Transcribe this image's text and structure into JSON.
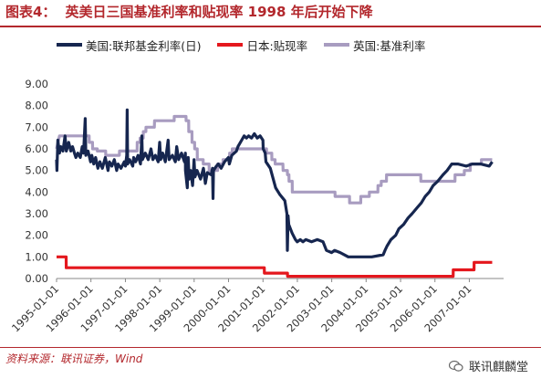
{
  "header": {
    "figure_label": "图表4：",
    "title": "英美日三国基准利率和贴现率 1998 年后开始下降"
  },
  "footer": {
    "source": "资料来源：联讯证券，Wind",
    "watermark": "联讯麒麟堂"
  },
  "chart_data": {
    "type": "line",
    "ylim": [
      0,
      9
    ],
    "yticks": [
      "0.00",
      "1.00",
      "2.00",
      "3.00",
      "4.00",
      "5.00",
      "6.00",
      "7.00",
      "8.00",
      "9.00"
    ],
    "xlim": [
      "1995-01-01",
      "2007-12-31"
    ],
    "xticks": [
      "1995-01-01",
      "1996-01-01",
      "1997-01-01",
      "1998-01-01",
      "1999-01-01",
      "2000-01-01",
      "2001-01-01",
      "2002-01-01",
      "2003-01-01",
      "2004-01-01",
      "2005-01-01",
      "2006-01-01",
      "2007-01-01"
    ],
    "grid": false,
    "legend_position": "top",
    "series": [
      {
        "name": "美国:联邦基金利率(日)",
        "color": "#16264f",
        "points": [
          [
            "1995-01-01",
            5.5
          ],
          [
            "1995-01-05",
            5.0
          ],
          [
            "1995-01-15",
            6.4
          ],
          [
            "1995-02-01",
            5.8
          ],
          [
            "1995-02-15",
            6.1
          ],
          [
            "1995-03-10",
            5.9
          ],
          [
            "1995-04-01",
            6.6
          ],
          [
            "1995-04-15",
            5.9
          ],
          [
            "1995-05-10",
            6.3
          ],
          [
            "1995-06-01",
            5.9
          ],
          [
            "1995-06-20",
            6.1
          ],
          [
            "1995-07-10",
            5.8
          ],
          [
            "1995-07-25",
            5.6
          ],
          [
            "1995-08-15",
            5.8
          ],
          [
            "1995-09-10",
            5.6
          ],
          [
            "1995-09-30",
            6.1
          ],
          [
            "1995-10-15",
            5.8
          ],
          [
            "1995-11-01",
            7.4
          ],
          [
            "1995-11-08",
            5.7
          ],
          [
            "1995-12-01",
            5.9
          ],
          [
            "1995-12-28",
            5.4
          ],
          [
            "1996-01-10",
            5.7
          ],
          [
            "1996-01-31",
            5.3
          ],
          [
            "1996-02-20",
            5.6
          ],
          [
            "1996-03-15",
            5.1
          ],
          [
            "1996-04-05",
            5.4
          ],
          [
            "1996-05-01",
            5.1
          ],
          [
            "1996-06-01",
            5.6
          ],
          [
            "1996-06-30",
            5.0
          ],
          [
            "1996-07-15",
            5.4
          ],
          [
            "1996-08-10",
            5.2
          ],
          [
            "1996-09-05",
            5.5
          ],
          [
            "1996-09-30",
            5.0
          ],
          [
            "1996-10-15",
            5.3
          ],
          [
            "1996-11-15",
            5.1
          ],
          [
            "1996-12-20",
            5.4
          ],
          [
            "1997-01-01",
            5.2
          ],
          [
            "1997-01-15",
            5.7
          ],
          [
            "1997-01-20",
            7.8
          ],
          [
            "1997-01-25",
            5.3
          ],
          [
            "1997-02-15",
            5.5
          ],
          [
            "1997-03-20",
            5.2
          ],
          [
            "1997-03-30",
            5.6
          ],
          [
            "1997-04-20",
            5.4
          ],
          [
            "1997-05-15",
            5.7
          ],
          [
            "1997-06-10",
            5.3
          ],
          [
            "1997-06-25",
            6.6
          ],
          [
            "1997-07-01",
            5.5
          ],
          [
            "1997-08-01",
            5.8
          ],
          [
            "1997-09-01",
            5.5
          ],
          [
            "1997-09-30",
            6.0
          ],
          [
            "1997-10-20",
            5.5
          ],
          [
            "1997-11-15",
            5.7
          ],
          [
            "1997-12-15",
            5.4
          ],
          [
            "1997-12-31",
            6.3
          ],
          [
            "1998-01-10",
            5.5
          ],
          [
            "1998-02-01",
            5.8
          ],
          [
            "1998-03-01",
            5.4
          ],
          [
            "1998-03-31",
            6.4
          ],
          [
            "1998-04-10",
            5.5
          ],
          [
            "1998-05-15",
            5.7
          ],
          [
            "1998-06-15",
            5.4
          ],
          [
            "1998-06-30",
            6.1
          ],
          [
            "1998-07-20",
            5.5
          ],
          [
            "1998-08-20",
            5.8
          ],
          [
            "1998-09-20",
            5.4
          ],
          [
            "1998-09-30",
            5.8
          ],
          [
            "1998-10-01",
            5.0
          ],
          [
            "1998-10-20",
            4.2
          ],
          [
            "1998-10-30",
            5.6
          ],
          [
            "1998-11-10",
            4.6
          ],
          [
            "1998-11-25",
            5.0
          ],
          [
            "1998-12-15",
            4.3
          ],
          [
            "1998-12-31",
            5.5
          ],
          [
            "1999-01-10",
            4.7
          ],
          [
            "1999-02-01",
            5.0
          ],
          [
            "1999-03-10",
            4.6
          ],
          [
            "1999-04-10",
            5.1
          ],
          [
            "1999-04-30",
            4.4
          ],
          [
            "1999-05-20",
            4.9
          ],
          [
            "1999-06-30",
            4.8
          ],
          [
            "1999-07-15",
            5.1
          ],
          [
            "1999-07-20",
            3.7
          ],
          [
            "1999-07-25",
            5.0
          ],
          [
            "1999-08-25",
            5.2
          ],
          [
            "1999-09-15",
            5.3
          ],
          [
            "1999-10-15",
            5.1
          ],
          [
            "1999-11-20",
            5.4
          ],
          [
            "1999-12-31",
            5.6
          ],
          [
            "2000-01-10",
            5.3
          ],
          [
            "2000-02-05",
            5.7
          ],
          [
            "2000-03-25",
            5.9
          ],
          [
            "2000-04-10",
            6.1
          ],
          [
            "2000-05-20",
            6.4
          ],
          [
            "2000-06-15",
            6.6
          ],
          [
            "2000-07-10",
            6.5
          ],
          [
            "2000-08-01",
            6.6
          ],
          [
            "2000-09-01",
            6.5
          ],
          [
            "2000-10-01",
            6.7
          ],
          [
            "2000-11-01",
            6.5
          ],
          [
            "2000-12-01",
            6.6
          ],
          [
            "2000-12-31",
            6.4
          ],
          [
            "2001-01-03",
            6.0
          ],
          [
            "2001-01-25",
            5.8
          ],
          [
            "2001-02-01",
            5.4
          ],
          [
            "2001-03-20",
            5.1
          ],
          [
            "2001-04-20",
            4.6
          ],
          [
            "2001-05-15",
            4.2
          ],
          [
            "2001-06-27",
            3.9
          ],
          [
            "2001-08-21",
            3.6
          ],
          [
            "2001-09-12",
            3.0
          ],
          [
            "2001-09-17",
            1.3
          ],
          [
            "2001-09-25",
            2.9
          ],
          [
            "2001-10-02",
            2.5
          ],
          [
            "2001-11-06",
            2.1
          ],
          [
            "2001-12-11",
            1.8
          ],
          [
            "2001-12-31",
            1.7
          ],
          [
            "2002-02-01",
            1.8
          ],
          [
            "2002-03-01",
            1.7
          ],
          [
            "2002-04-01",
            1.8
          ],
          [
            "2002-06-01",
            1.7
          ],
          [
            "2002-08-01",
            1.8
          ],
          [
            "2002-10-01",
            1.7
          ],
          [
            "2002-11-06",
            1.3
          ],
          [
            "2002-12-31",
            1.2
          ],
          [
            "2003-02-01",
            1.3
          ],
          [
            "2003-04-01",
            1.2
          ],
          [
            "2003-06-25",
            1.0
          ],
          [
            "2003-09-01",
            1.0
          ],
          [
            "2003-12-31",
            1.0
          ],
          [
            "2004-03-01",
            1.0
          ],
          [
            "2004-06-30",
            1.1
          ],
          [
            "2004-07-20",
            1.3
          ],
          [
            "2004-08-10",
            1.5
          ],
          [
            "2004-09-21",
            1.8
          ],
          [
            "2004-11-10",
            2.0
          ],
          [
            "2004-12-14",
            2.3
          ],
          [
            "2005-02-02",
            2.5
          ],
          [
            "2005-03-22",
            2.8
          ],
          [
            "2005-05-03",
            3.0
          ],
          [
            "2005-06-30",
            3.3
          ],
          [
            "2005-08-09",
            3.5
          ],
          [
            "2005-09-20",
            3.8
          ],
          [
            "2005-11-01",
            4.0
          ],
          [
            "2005-12-13",
            4.3
          ],
          [
            "2006-01-31",
            4.5
          ],
          [
            "2006-03-28",
            4.8
          ],
          [
            "2006-05-10",
            5.0
          ],
          [
            "2006-06-29",
            5.3
          ],
          [
            "2006-09-01",
            5.3
          ],
          [
            "2006-12-01",
            5.2
          ],
          [
            "2007-02-01",
            5.3
          ],
          [
            "2007-05-01",
            5.3
          ],
          [
            "2007-08-01",
            5.2
          ],
          [
            "2007-09-01",
            5.4
          ]
        ]
      },
      {
        "name": "日本:贴现率",
        "color": "#e4171d",
        "points": [
          [
            "1995-01-01",
            1.0
          ],
          [
            "1995-04-13",
            1.0
          ],
          [
            "1995-04-14",
            0.5
          ],
          [
            "2001-01-15",
            0.5
          ],
          [
            "2001-01-16",
            0.25
          ],
          [
            "2001-09-18",
            0.25
          ],
          [
            "2001-09-19",
            0.1
          ],
          [
            "2006-07-13",
            0.1
          ],
          [
            "2006-07-14",
            0.4
          ],
          [
            "2007-02-20",
            0.4
          ],
          [
            "2007-02-21",
            0.75
          ],
          [
            "2007-09-01",
            0.75
          ]
        ]
      },
      {
        "name": "英国:基准利率",
        "color": "#a89cc0",
        "points": [
          [
            "1995-01-01",
            6.0
          ],
          [
            "1995-02-01",
            6.6
          ],
          [
            "1995-12-13",
            6.6
          ],
          [
            "1995-12-14",
            6.3
          ],
          [
            "1996-01-18",
            6.3
          ],
          [
            "1996-01-19",
            6.0
          ],
          [
            "1996-03-08",
            6.0
          ],
          [
            "1996-03-09",
            5.9
          ],
          [
            "1996-06-05",
            5.9
          ],
          [
            "1996-06-06",
            5.7
          ],
          [
            "1996-10-29",
            5.7
          ],
          [
            "1996-10-30",
            5.9
          ],
          [
            "1997-05-05",
            5.9
          ],
          [
            "1997-05-06",
            6.3
          ],
          [
            "1997-06-05",
            6.3
          ],
          [
            "1997-06-06",
            6.5
          ],
          [
            "1997-07-09",
            6.5
          ],
          [
            "1997-07-10",
            6.8
          ],
          [
            "1997-08-06",
            6.8
          ],
          [
            "1997-08-07",
            7.0
          ],
          [
            "1997-11-05",
            7.0
          ],
          [
            "1997-11-06",
            7.3
          ],
          [
            "1998-06-03",
            7.3
          ],
          [
            "1998-06-04",
            7.5
          ],
          [
            "1998-10-07",
            7.5
          ],
          [
            "1998-10-08",
            7.3
          ],
          [
            "1998-11-04",
            7.3
          ],
          [
            "1998-11-05",
            6.8
          ],
          [
            "1998-12-09",
            6.8
          ],
          [
            "1998-12-10",
            6.3
          ],
          [
            "1999-01-06",
            6.3
          ],
          [
            "1999-01-07",
            6.0
          ],
          [
            "1999-02-03",
            6.0
          ],
          [
            "1999-02-04",
            5.5
          ],
          [
            "1999-04-07",
            5.5
          ],
          [
            "1999-04-08",
            5.3
          ],
          [
            "1999-06-09",
            5.3
          ],
          [
            "1999-06-10",
            5.0
          ],
          [
            "1999-09-07",
            5.0
          ],
          [
            "1999-09-08",
            5.3
          ],
          [
            "1999-11-03",
            5.3
          ],
          [
            "1999-11-04",
            5.5
          ],
          [
            "2000-01-12",
            5.5
          ],
          [
            "2000-01-13",
            5.8
          ],
          [
            "2000-02-09",
            5.8
          ],
          [
            "2000-02-10",
            6.0
          ],
          [
            "2001-02-07",
            6.0
          ],
          [
            "2001-02-08",
            5.8
          ],
          [
            "2001-04-04",
            5.8
          ],
          [
            "2001-04-05",
            5.5
          ],
          [
            "2001-05-09",
            5.5
          ],
          [
            "2001-05-10",
            5.3
          ],
          [
            "2001-08-01",
            5.3
          ],
          [
            "2001-08-02",
            5.0
          ],
          [
            "2001-09-17",
            5.0
          ],
          [
            "2001-09-18",
            4.8
          ],
          [
            "2001-10-03",
            4.8
          ],
          [
            "2001-10-04",
            4.5
          ],
          [
            "2001-11-07",
            4.5
          ],
          [
            "2001-11-08",
            4.0
          ],
          [
            "2003-02-05",
            4.0
          ],
          [
            "2003-02-06",
            3.8
          ],
          [
            "2003-07-09",
            3.8
          ],
          [
            "2003-07-10",
            3.5
          ],
          [
            "2003-11-05",
            3.5
          ],
          [
            "2003-11-06",
            3.8
          ],
          [
            "2004-02-04",
            3.8
          ],
          [
            "2004-02-05",
            4.0
          ],
          [
            "2004-05-05",
            4.0
          ],
          [
            "2004-05-06",
            4.3
          ],
          [
            "2004-06-09",
            4.3
          ],
          [
            "2004-06-10",
            4.5
          ],
          [
            "2004-08-04",
            4.5
          ],
          [
            "2004-08-05",
            4.8
          ],
          [
            "2005-08-03",
            4.8
          ],
          [
            "2005-08-04",
            4.5
          ],
          [
            "2006-08-02",
            4.5
          ],
          [
            "2006-08-03",
            4.8
          ],
          [
            "2006-11-08",
            4.8
          ],
          [
            "2006-11-09",
            5.0
          ],
          [
            "2007-01-10",
            5.0
          ],
          [
            "2007-01-11",
            5.3
          ],
          [
            "2007-05-09",
            5.3
          ],
          [
            "2007-05-10",
            5.5
          ],
          [
            "2007-09-01",
            5.5
          ]
        ]
      }
    ]
  }
}
